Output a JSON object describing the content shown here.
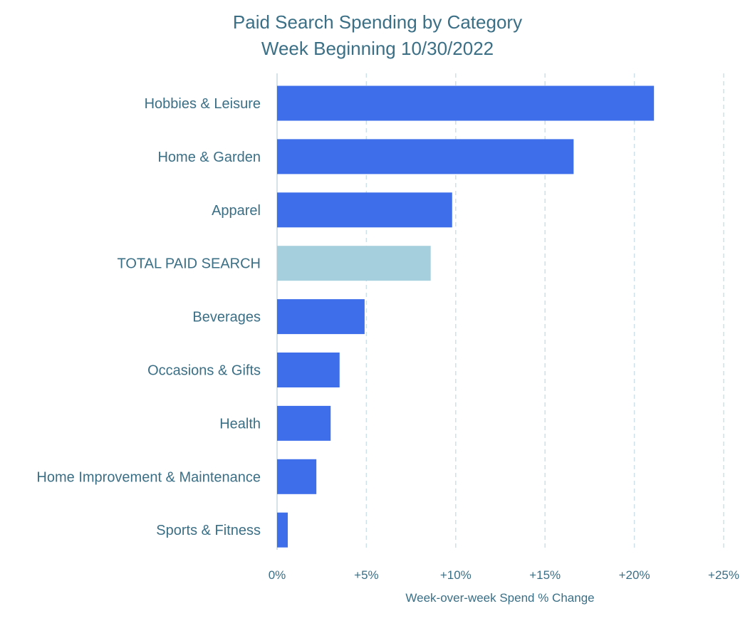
{
  "chart_data": {
    "type": "bar",
    "orientation": "horizontal",
    "title": "Paid Search Spending by Category",
    "subtitle": "Week Beginning 10/30/2022",
    "xlabel": "Week-over-week Spend % Change",
    "ylabel": "",
    "xlim": [
      0,
      25
    ],
    "xticks": [
      0,
      5,
      10,
      15,
      20,
      25
    ],
    "xtick_labels": [
      "0%",
      "+5%",
      "+10%",
      "+15%",
      "+20%",
      "+25%"
    ],
    "grid": "vertical dashed",
    "categories": [
      "Hobbies & Leisure",
      "Home & Garden",
      "Apparel",
      "TOTAL PAID SEARCH",
      "Beverages",
      "Occasions & Gifts",
      "Health",
      "Home Improvement & Maintenance",
      "Sports & Fitness"
    ],
    "values": [
      21.1,
      16.6,
      9.8,
      8.6,
      4.9,
      3.5,
      3.0,
      2.2,
      0.6
    ],
    "colors": {
      "default_bar": "#3e6eea",
      "highlight_bar": "#a6cfdd",
      "text": "#3b6f86",
      "grid": "#cfe0e6",
      "axis": "#d5e3e8"
    },
    "highlight_category": "TOTAL PAID SEARCH"
  }
}
